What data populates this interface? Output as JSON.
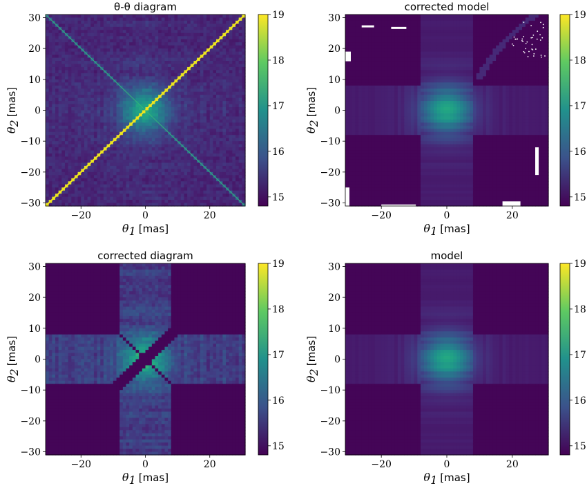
{
  "chart_data": [
    {
      "type": "heatmap",
      "title": "θ-θ diagram",
      "xlabel": {
        "symbol": "θ",
        "sub": "1",
        "unit": "[mas]"
      },
      "ylabel": {
        "symbol": "θ",
        "sub": "2",
        "unit": "[mas]"
      },
      "xlim": [
        -31,
        31
      ],
      "ylim": [
        -31,
        31
      ],
      "xticks": [
        -20,
        0,
        20
      ],
      "yticks": [
        -30,
        -20,
        -10,
        0,
        10,
        20,
        30
      ],
      "colorbar": {
        "range": [
          14.8,
          19
        ],
        "ticks": [
          15,
          16,
          17,
          18,
          19
        ]
      },
      "features": {
        "diagonal_ridges": true,
        "central_blob_peak": 17.3,
        "background": 15.2
      }
    },
    {
      "type": "heatmap",
      "title": "corrected model",
      "xlabel": {
        "symbol": "θ",
        "sub": "1",
        "unit": "[mas]"
      },
      "ylabel": {
        "symbol": "θ",
        "sub": "2",
        "unit": "[mas]"
      },
      "xlim": [
        -31,
        31
      ],
      "ylim": [
        -31,
        31
      ],
      "xticks": [
        -20,
        0,
        20
      ],
      "yticks": [
        -30,
        -20,
        -10,
        0,
        10,
        20,
        30
      ],
      "colorbar": {
        "range": [
          14.8,
          19
        ],
        "ticks": [
          15,
          16,
          17,
          18,
          19
        ]
      },
      "features": {
        "cross_band_halfwidth": 8,
        "central_blob_peak": 17.0,
        "background": 14.85,
        "masked_gaps": "white"
      }
    },
    {
      "type": "heatmap",
      "title": "corrected diagram",
      "xlabel": {
        "symbol": "θ",
        "sub": "1",
        "unit": "[mas]"
      },
      "ylabel": {
        "symbol": "θ",
        "sub": "2",
        "unit": "[mas]"
      },
      "xlim": [
        -31,
        31
      ],
      "ylim": [
        -31,
        31
      ],
      "xticks": [
        -20,
        0,
        20
      ],
      "yticks": [
        -30,
        -20,
        -10,
        0,
        10,
        20,
        30
      ],
      "colorbar": {
        "range": [
          14.8,
          19
        ],
        "ticks": [
          15,
          16,
          17,
          18,
          19
        ]
      },
      "features": {
        "cross_band_halfwidth": 8,
        "central_blob_peak": 17.3,
        "background": 14.85,
        "diagonal_masked": true
      }
    },
    {
      "type": "heatmap",
      "title": "model",
      "xlabel": {
        "symbol": "θ",
        "sub": "1",
        "unit": "[mas]"
      },
      "ylabel": {
        "symbol": "θ",
        "sub": "2",
        "unit": "[mas]"
      },
      "xlim": [
        -31,
        31
      ],
      "ylim": [
        -31,
        31
      ],
      "xticks": [
        -20,
        0,
        20
      ],
      "yticks": [
        -30,
        -20,
        -10,
        0,
        10,
        20,
        30
      ],
      "colorbar": {
        "range": [
          14.8,
          19
        ],
        "ticks": [
          15,
          16,
          17,
          18,
          19
        ]
      },
      "features": {
        "cross_band_halfwidth": 8,
        "central_blob_peak": 17.0,
        "background": 14.85
      }
    }
  ],
  "colors": {
    "viridis_low": "#440154",
    "viridis_mid": "#21918c",
    "viridis_high": "#fde725",
    "background_dark": "#46085c",
    "mask_white": "#ffffff"
  }
}
